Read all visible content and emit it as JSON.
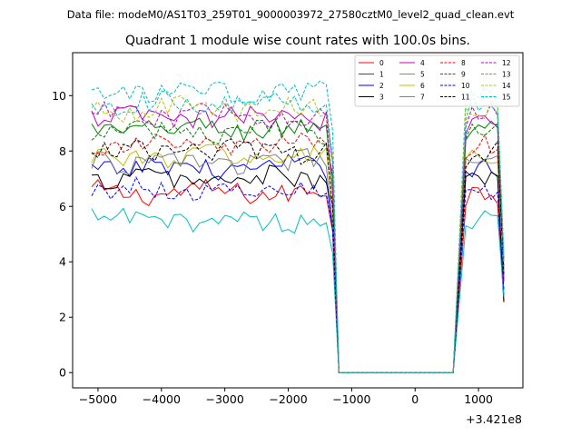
{
  "suptitle": "Data file: modeM0/AS1T03_259T01_9000003972_27580cztM0_level2_quad_clean.evt",
  "chart_data": {
    "type": "line",
    "title": "Quadrant 1 module wise count rates with 100.0s bins.",
    "xlabel": "",
    "ylabel": "",
    "x_offset_label": "+3.421e8",
    "xlim": [
      -5400,
      1700
    ],
    "ylim": [
      -0.55,
      11.55
    ],
    "x_ticks": [
      -5000,
      -4000,
      -3000,
      -2000,
      -1000,
      0,
      1000
    ],
    "x_tick_labels": [
      "−5000",
      "−4000",
      "−3000",
      "−2000",
      "−1000",
      "0",
      "1000"
    ],
    "y_ticks": [
      0,
      2,
      4,
      6,
      8,
      10
    ],
    "y_tick_labels": [
      "0",
      "2",
      "4",
      "6",
      "8",
      "10"
    ],
    "grid": false,
    "legend_position": "top-right",
    "gap": {
      "drop_start": -1400,
      "drop_end": -1200,
      "zero_to": 600,
      "rise_end": 800,
      "data_end": 1400
    },
    "series": [
      {
        "name": "0",
        "color": "#ff0000",
        "dash": "solid",
        "base": 6.5
      },
      {
        "name": "1",
        "color": "#008000",
        "dash": "solid",
        "base": 8.8
      },
      {
        "name": "2",
        "color": "#0000ff",
        "dash": "solid",
        "base": 7.4
      },
      {
        "name": "3",
        "color": "#000000",
        "dash": "solid",
        "base": 7.0
      },
      {
        "name": "4",
        "color": "#bf00bf",
        "dash": "solid",
        "base": 9.2
      },
      {
        "name": "5",
        "color": "#00bfbf",
        "dash": "solid",
        "base": 5.5
      },
      {
        "name": "6",
        "color": "#bfbf00",
        "dash": "solid",
        "base": 7.8
      },
      {
        "name": "7",
        "color": "#808080",
        "dash": "solid",
        "base": 7.6
      },
      {
        "name": "8",
        "color": "#ff0000",
        "dash": "dashed",
        "base": 8.2
      },
      {
        "name": "9",
        "color": "#008000",
        "dash": "dashed",
        "base": 8.7
      },
      {
        "name": "10",
        "color": "#0000ff",
        "dash": "dashed",
        "base": 6.6
      },
      {
        "name": "11",
        "color": "#000000",
        "dash": "dashed",
        "base": 8.0
      },
      {
        "name": "12",
        "color": "#bf00bf",
        "dash": "dashed",
        "base": 9.3
      },
      {
        "name": "13",
        "color": "#00bfbf",
        "dash": "dashed",
        "base": 10.1
      },
      {
        "name": "14",
        "color": "#bfbf00",
        "dash": "dashed",
        "base": 9.5
      },
      {
        "name": "15",
        "color": "#00bfbf",
        "dash": "dashed",
        "base": 9.7
      }
    ]
  }
}
